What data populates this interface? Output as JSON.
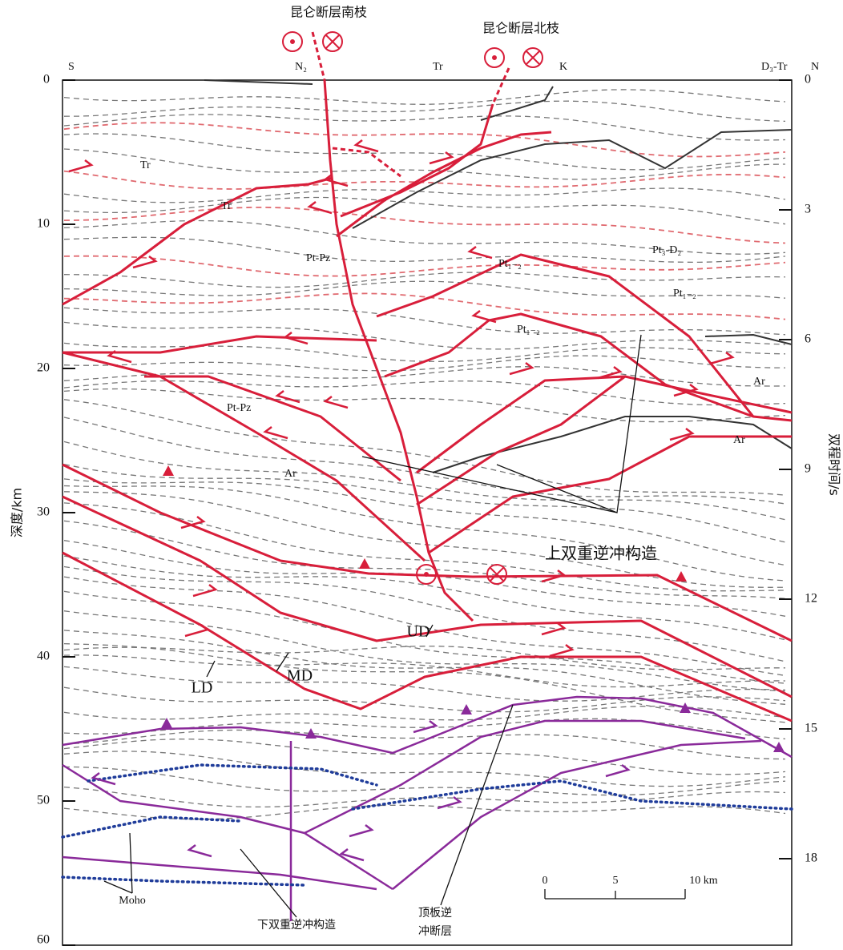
{
  "fault_labels": [
    "昆仑断层南枝",
    "昆仑断层北枝"
  ],
  "direction": {
    "south": "S",
    "north": "N"
  },
  "surface_labels": [
    "N₂",
    "Tr",
    "K",
    "D₃-Tr"
  ],
  "unit_labels": [
    "Tr",
    "Tr",
    "Pt-Pz",
    "Pt₁₋₂",
    "Pt₃-D₂",
    "Pt₁₋₂",
    "Pt₁₋₂",
    "Ar",
    "Pt-Pz",
    "Ar",
    "Ar"
  ],
  "structure_labels": [
    "上双重逆冲构造",
    "UD",
    "MD",
    "LD",
    "Moho",
    "下双重逆冲构造",
    "顶板逆",
    "冲断层"
  ],
  "left_axis": {
    "label": "深度/km",
    "range": [
      0,
      60
    ],
    "ticks": [
      0,
      10,
      20,
      30,
      40,
      50,
      60
    ]
  },
  "right_axis": {
    "label": "双程时间/s",
    "range": [
      0,
      20
    ],
    "ticks": [
      0,
      3,
      6,
      9,
      12,
      15,
      18
    ]
  },
  "scale_bar": {
    "labels": [
      "0",
      "5",
      "10 km"
    ]
  }
}
